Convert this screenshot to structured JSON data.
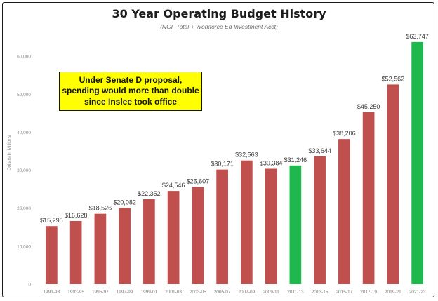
{
  "chart_data": {
    "type": "bar",
    "title": "30 Year Operating Budget History",
    "subtitle": "(NGF Total + Workforce Ed Investment Acct)",
    "ylabel": "Dollars in Millions",
    "xlabel": "",
    "ylim": [
      0,
      70000
    ],
    "yticks": [
      0,
      10000,
      20000,
      30000,
      40000,
      50000,
      60000
    ],
    "ytick_labels": [
      "0",
      "10,000",
      "20,000",
      "30,000",
      "40,000",
      "50,000",
      "60,000"
    ],
    "grid": false,
    "categories": [
      "1991-93",
      "1993-95",
      "1995-97",
      "1997-99",
      "1999-01",
      "2001-03",
      "2003-05",
      "2005-07",
      "2007-09",
      "2009-11",
      "2011-13",
      "2013-15",
      "2015-17",
      "2017-19",
      "2019-21",
      "2021-23"
    ],
    "values": [
      15295,
      16628,
      18526,
      20082,
      22352,
      24546,
      25607,
      30171,
      32563,
      30384,
      31246,
      33644,
      38206,
      45250,
      52562,
      63747
    ],
    "data_labels": [
      "$15,295",
      "$16,628",
      "$18,526",
      "$20,082",
      "$22,352",
      "$24,546",
      "$25,607",
      "$30,171",
      "$32,563",
      "$30,384",
      "$31,246",
      "$33,644",
      "$38,206",
      "$45,250",
      "$52,562",
      "$63,747"
    ],
    "highlighted": [
      "2011-13",
      "2021-23"
    ],
    "colors": {
      "default": "#c0504d",
      "highlight": "#1fb84d"
    }
  },
  "callout": {
    "lines": [
      "Under Senate D proposal,",
      "spending would more than double",
      "since Inslee took office"
    ]
  }
}
